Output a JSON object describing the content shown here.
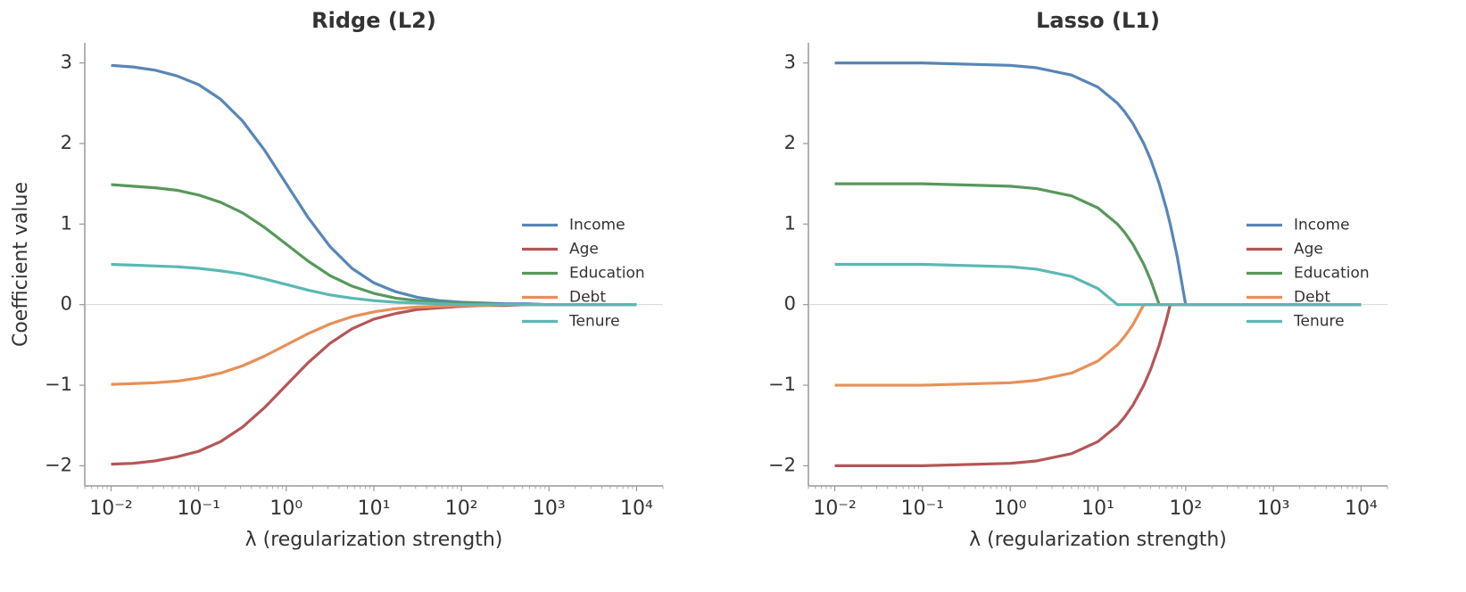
{
  "chart_data": [
    {
      "type": "line",
      "title": "Ridge (L2)",
      "xlabel": "λ (regularization strength)",
      "ylabel": "Coefficient value",
      "x": [
        0.01,
        0.01778,
        0.03162,
        0.05623,
        0.1,
        0.1778,
        0.3162,
        0.5623,
        1,
        1.778,
        3.162,
        5.623,
        10,
        17.78,
        31.62,
        56.23,
        100,
        177.8,
        316.2,
        562.3,
        1000,
        1778,
        3162,
        5623,
        10000
      ],
      "series": [
        {
          "name": "Income",
          "color": "#5886b6",
          "values": [
            2.97,
            2.95,
            2.91,
            2.84,
            2.73,
            2.55,
            2.28,
            1.92,
            1.5,
            1.08,
            0.72,
            0.45,
            0.27,
            0.16,
            0.09,
            0.05,
            0.03,
            0.02,
            0.01,
            0.01,
            0,
            0,
            0,
            0,
            0
          ]
        },
        {
          "name": "Age",
          "color": "#b55657",
          "values": [
            -1.98,
            -1.97,
            -1.94,
            -1.89,
            -1.82,
            -1.7,
            -1.52,
            -1.28,
            -1,
            -0.72,
            -0.48,
            -0.3,
            -0.18,
            -0.11,
            -0.06,
            -0.04,
            -0.02,
            -0.01,
            -0.01,
            0,
            0,
            0,
            0,
            0,
            0
          ]
        },
        {
          "name": "Education",
          "color": "#58985b",
          "values": [
            1.49,
            1.47,
            1.45,
            1.42,
            1.36,
            1.27,
            1.14,
            0.96,
            0.75,
            0.54,
            0.36,
            0.23,
            0.14,
            0.08,
            0.05,
            0.03,
            0.01,
            0.01,
            0,
            0,
            0,
            0,
            0,
            0,
            0
          ]
        },
        {
          "name": "Debt",
          "color": "#e88f57",
          "values": [
            -0.99,
            -0.98,
            -0.97,
            -0.95,
            -0.91,
            -0.85,
            -0.76,
            -0.64,
            -0.5,
            -0.36,
            -0.24,
            -0.15,
            -0.09,
            -0.05,
            -0.03,
            -0.02,
            -0.01,
            -0.01,
            0,
            0,
            0,
            0,
            0,
            0,
            0
          ]
        },
        {
          "name": "Tenure",
          "color": "#5ab8b3",
          "values": [
            0.5,
            0.49,
            0.48,
            0.47,
            0.45,
            0.42,
            0.38,
            0.32,
            0.25,
            0.18,
            0.12,
            0.08,
            0.05,
            0.03,
            0.02,
            0.01,
            0,
            0,
            0,
            0,
            0,
            0,
            0,
            0,
            0
          ]
        }
      ],
      "xscale": "log",
      "xlim": [
        0.005,
        20000
      ],
      "xticks": [
        {
          "value": 0.01,
          "label": "10⁻²"
        },
        {
          "value": 0.1,
          "label": "10⁻¹"
        },
        {
          "value": 1,
          "label": "10⁰"
        },
        {
          "value": 10,
          "label": "10¹"
        },
        {
          "value": 100,
          "label": "10²"
        },
        {
          "value": 1000,
          "label": "10³"
        },
        {
          "value": 10000,
          "label": "10⁴"
        }
      ],
      "ylim": [
        -2.25,
        3.25
      ],
      "yticks": [
        {
          "value": -2,
          "label": "−2"
        },
        {
          "value": -1,
          "label": "−1"
        },
        0,
        1,
        2,
        3
      ],
      "hline": 0,
      "legend": "center right"
    },
    {
      "type": "line",
      "title": "Lasso (L1)",
      "xlabel": "λ (regularization strength)",
      "x": [
        0.01,
        0.1,
        1,
        2,
        5,
        10,
        16.67,
        20,
        25,
        33.33,
        40,
        50,
        60,
        66.67,
        80,
        100,
        10000
      ],
      "series": [
        {
          "name": "Income",
          "color": "#5886b6",
          "values": [
            3,
            3,
            2.97,
            2.94,
            2.85,
            2.7,
            2.5,
            2.4,
            2.25,
            2,
            1.8,
            1.5,
            1.2,
            1,
            0.6,
            0,
            0
          ]
        },
        {
          "name": "Age",
          "color": "#b55657",
          "values": [
            -2,
            -2,
            -1.97,
            -1.94,
            -1.85,
            -1.7,
            -1.5,
            -1.4,
            -1.25,
            -1,
            -0.8,
            -0.5,
            -0.2,
            0,
            0,
            0,
            0
          ]
        },
        {
          "name": "Education",
          "color": "#58985b",
          "values": [
            1.5,
            1.5,
            1.47,
            1.44,
            1.35,
            1.2,
            1,
            0.9,
            0.75,
            0.5,
            0.3,
            0,
            0,
            0,
            0,
            0,
            0
          ]
        },
        {
          "name": "Debt",
          "color": "#e88f57",
          "values": [
            -1,
            -1,
            -0.97,
            -0.94,
            -0.85,
            -0.7,
            -0.5,
            -0.4,
            -0.25,
            0,
            0,
            0,
            0,
            0,
            0,
            0,
            0
          ]
        },
        {
          "name": "Tenure",
          "color": "#5ab8b3",
          "values": [
            0.5,
            0.5,
            0.47,
            0.44,
            0.35,
            0.2,
            0,
            0,
            0,
            0,
            0,
            0,
            0,
            0,
            0,
            0,
            0
          ]
        }
      ],
      "xscale": "log",
      "xlim": [
        0.005,
        20000
      ],
      "xticks": [
        {
          "value": 0.01,
          "label": "10⁻²"
        },
        {
          "value": 0.1,
          "label": "10⁻¹"
        },
        {
          "value": 1,
          "label": "10⁰"
        },
        {
          "value": 10,
          "label": "10¹"
        },
        {
          "value": 100,
          "label": "10²"
        },
        {
          "value": 1000,
          "label": "10³"
        },
        {
          "value": 10000,
          "label": "10⁴"
        }
      ],
      "ylim": [
        -2.25,
        3.25
      ],
      "yticks": [
        {
          "value": -2,
          "label": "−2"
        },
        {
          "value": -1,
          "label": "−1"
        },
        0,
        1,
        2,
        3
      ],
      "hline": 0,
      "legend": "center right"
    }
  ]
}
